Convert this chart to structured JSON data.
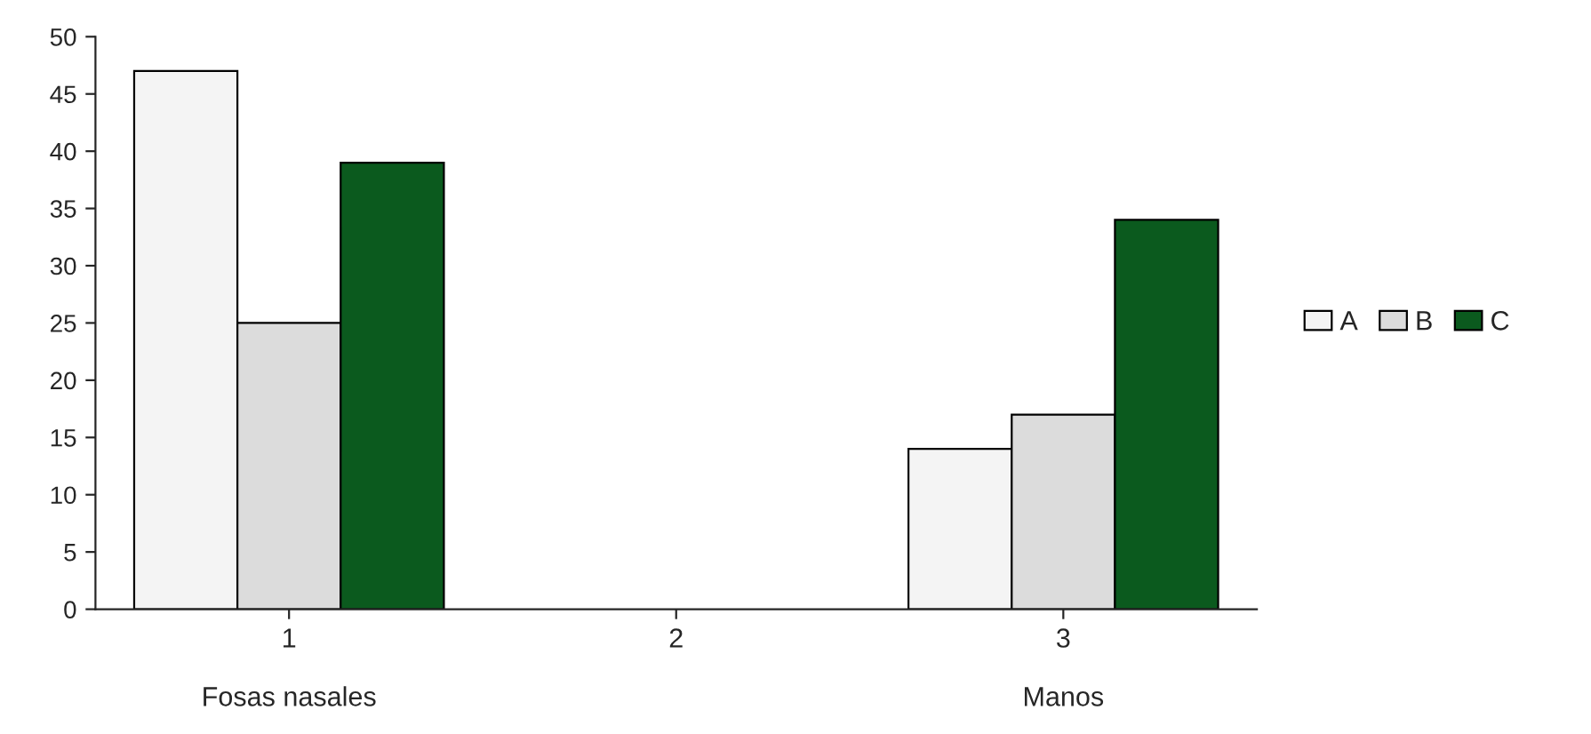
{
  "chart_data": {
    "type": "bar",
    "categories": [
      "1\n\nFosas nasales",
      "2",
      "3\n\nManos"
    ],
    "series": [
      {
        "name": "A",
        "color": "#f4f4f4",
        "values": [
          47,
          null,
          14
        ]
      },
      {
        "name": "B",
        "color": "#dcdcdc",
        "values": [
          25,
          null,
          17
        ]
      },
      {
        "name": "C",
        "color": "#0b5a1e",
        "values": [
          39,
          null,
          34
        ]
      }
    ],
    "ylim": [
      0,
      50
    ],
    "yticks": [
      0,
      5,
      10,
      15,
      20,
      25,
      30,
      35,
      40,
      45,
      50
    ],
    "grid": false,
    "legend": "right"
  }
}
